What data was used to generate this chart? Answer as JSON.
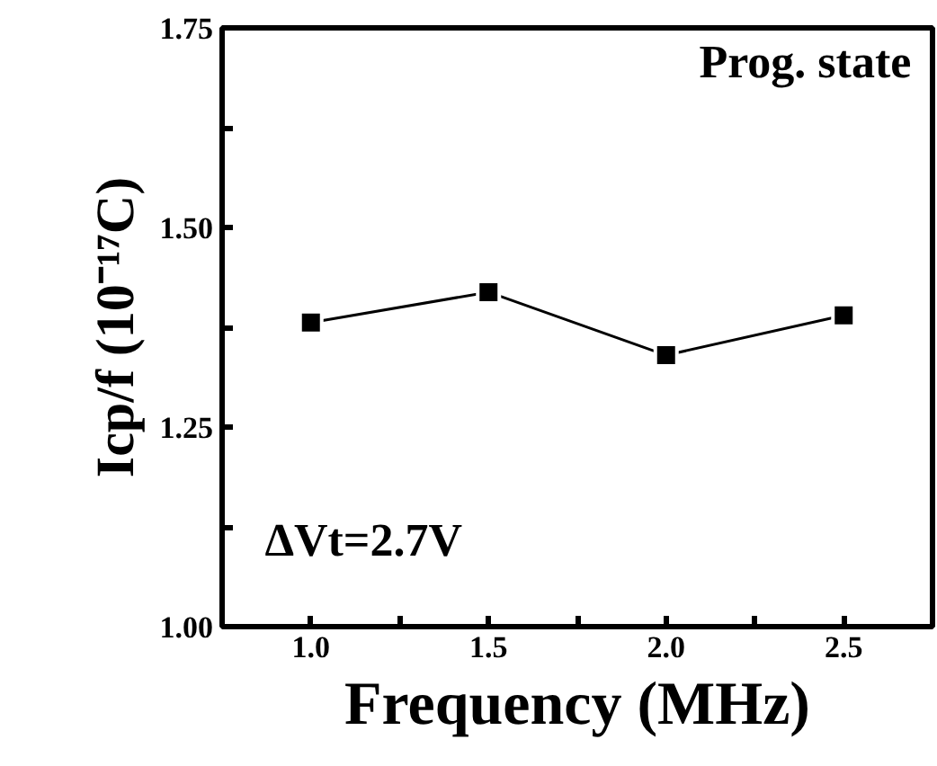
{
  "chart_data": {
    "type": "line",
    "xlabel": "Frequency (MHz)",
    "ylabel": "Icp/f (10⁻¹⁷C)",
    "x": [
      1.0,
      1.5,
      2.0,
      2.5
    ],
    "series": [
      {
        "color": "#000000",
        "values": [
          1.381,
          1.419,
          1.34,
          1.39
        ]
      }
    ],
    "marker": "square",
    "line_style": "solid",
    "grid": false,
    "xlim": [
      0.75,
      2.75
    ],
    "ylim": [
      1.0,
      1.75
    ],
    "xticks": [
      {
        "value": 1.0,
        "label": "1.0"
      },
      {
        "value": 1.25,
        "label": null
      },
      {
        "value": 1.5,
        "label": "1.5"
      },
      {
        "value": 1.75,
        "label": null
      },
      {
        "value": 2.0,
        "label": "2.0"
      },
      {
        "value": 2.25,
        "label": null
      },
      {
        "value": 2.5,
        "label": "2.5"
      }
    ],
    "yticks": [
      {
        "value": 1.0,
        "label": "1.00"
      },
      {
        "value": 1.125,
        "label": null
      },
      {
        "value": 1.25,
        "label": "1.25"
      },
      {
        "value": 1.375,
        "label": null
      },
      {
        "value": 1.5,
        "label": "1.50"
      },
      {
        "value": 1.625,
        "label": null
      },
      {
        "value": 1.75,
        "label": "1.75"
      }
    ],
    "annotations": [
      "Prog. state",
      "ΔVt=2.7V"
    ]
  }
}
